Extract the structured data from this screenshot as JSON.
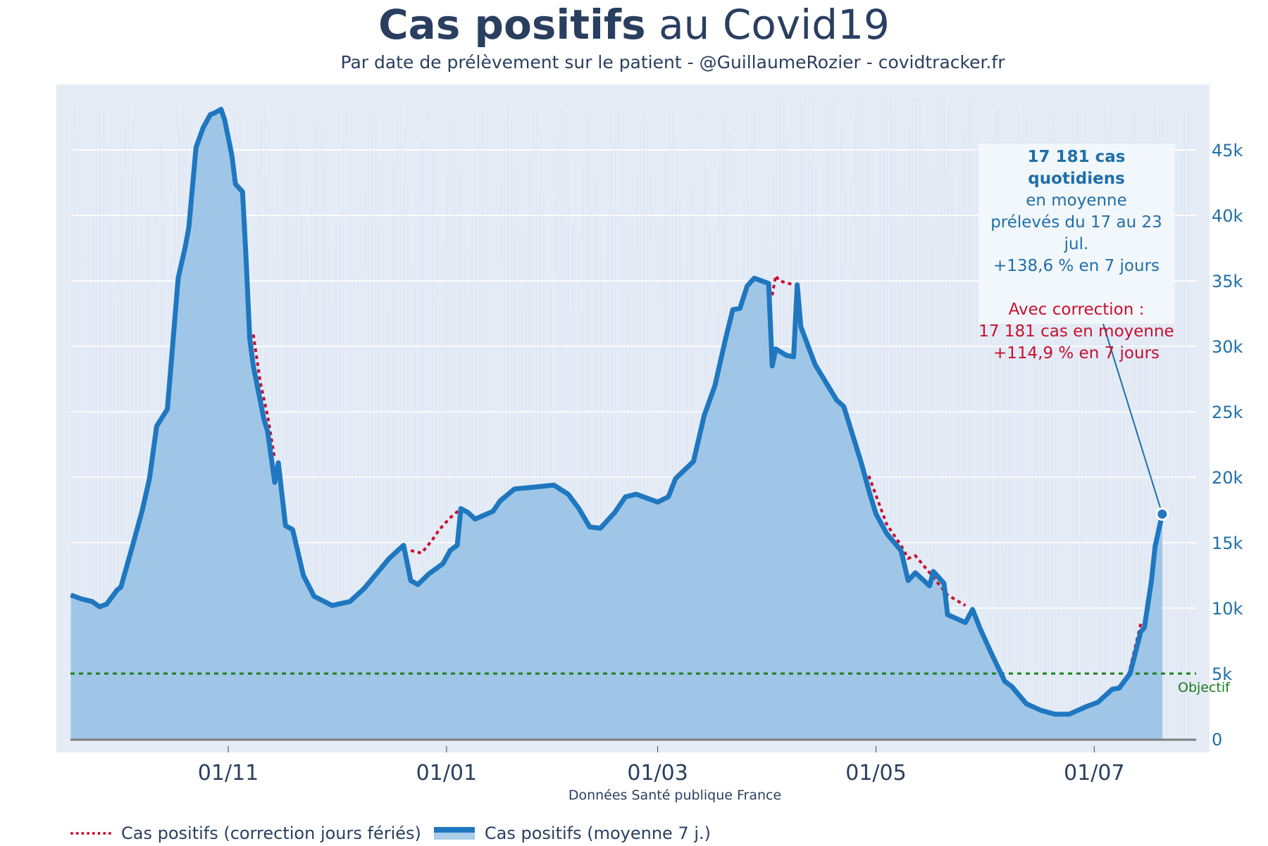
{
  "header": {
    "title_bold": "Cas positifs",
    "title_rest": " au Covid19",
    "subtitle": "Par date de prélèvement sur le patient - @GuillaumeRozier - covidtracker.fr"
  },
  "annotation": {
    "line1": "17 181 cas quotidiens",
    "line2": "en moyenne",
    "line3": "prélevés du 17 au 23 jul.",
    "line4": "+138,6 % en 7 jours",
    "line5": "Avec correction :",
    "line6": "17 181 cas en moyenne",
    "line7": "+114,9 % en 7 jours"
  },
  "legend": {
    "correction": "Cas positifs (correction jours fériés)",
    "average": "Cas positifs (moyenne 7 j.)"
  },
  "colors": {
    "line": "#1f77c0",
    "fill": "#9fc6e6",
    "correction": "#c8102e",
    "objective": "#1a7f1a",
    "plot_bg": "#e5ecf6"
  },
  "chart_data": {
    "type": "area",
    "title": "Cas positifs au Covid19",
    "subtitle": "Par date de prélèvement sur le patient - @GuillaumeRozier - covidtracker.fr",
    "xlabel": "Données Santé publique France",
    "ylabel": "",
    "x_ticks": [
      {
        "date": "2020-11-01",
        "label": "01/11"
      },
      {
        "date": "2021-01-01",
        "label": "01/01"
      },
      {
        "date": "2021-03-01",
        "label": "01/03"
      },
      {
        "date": "2021-05-01",
        "label": "01/05"
      },
      {
        "date": "2021-07-01",
        "label": "01/07"
      }
    ],
    "xlim": [
      "2020-09-18",
      "2021-08-07"
    ],
    "ylim": [
      0,
      49000
    ],
    "y_ticks": [
      0,
      5000,
      10000,
      15000,
      20000,
      25000,
      30000,
      35000,
      40000,
      45000
    ],
    "y_tick_labels": [
      "0",
      "5k",
      "10k",
      "15k",
      "20k",
      "25k",
      "30k",
      "35k",
      "40k",
      "45k"
    ],
    "y_axis_side": "right",
    "grid": true,
    "legend_position": "bottom-left",
    "objective": {
      "value": 5000,
      "label": "Objectif"
    },
    "last_point": {
      "date": "2021-07-20",
      "value": 17181
    },
    "series": [
      {
        "name": "Cas positifs (moyenne 7 j.)",
        "style": "solid-line-with-fill",
        "points": [
          [
            "2020-09-18",
            11000
          ],
          [
            "2020-09-21",
            10700
          ],
          [
            "2020-09-24",
            10500
          ],
          [
            "2020-09-26",
            10100
          ],
          [
            "2020-09-28",
            10300
          ],
          [
            "2020-10-01",
            11400
          ],
          [
            "2020-10-02",
            11600
          ],
          [
            "2020-10-05",
            14500
          ],
          [
            "2020-10-08",
            17500
          ],
          [
            "2020-10-10",
            19900
          ],
          [
            "2020-10-12",
            23900
          ],
          [
            "2020-10-15",
            25200
          ],
          [
            "2020-10-16",
            28500
          ],
          [
            "2020-10-18",
            35200
          ],
          [
            "2020-10-20",
            37600
          ],
          [
            "2020-10-21",
            39100
          ],
          [
            "2020-10-23",
            45200
          ],
          [
            "2020-10-25",
            46700
          ],
          [
            "2020-10-27",
            47700
          ],
          [
            "2020-10-28",
            47800
          ],
          [
            "2020-10-30",
            48100
          ],
          [
            "2020-10-31",
            47300
          ],
          [
            "2020-11-02",
            44600
          ],
          [
            "2020-11-03",
            42400
          ],
          [
            "2020-11-05",
            41800
          ],
          [
            "2020-11-06",
            36600
          ],
          [
            "2020-11-07",
            30600
          ],
          [
            "2020-11-08",
            28500
          ],
          [
            "2020-11-11",
            24400
          ],
          [
            "2020-11-12",
            23500
          ],
          [
            "2020-11-14",
            19600
          ],
          [
            "2020-11-15",
            21100
          ],
          [
            "2020-11-17",
            16300
          ],
          [
            "2020-11-19",
            16000
          ],
          [
            "2020-11-22",
            12500
          ],
          [
            "2020-11-25",
            10900
          ],
          [
            "2020-11-30",
            10200
          ],
          [
            "2020-12-05",
            10500
          ],
          [
            "2020-12-09",
            11500
          ],
          [
            "2020-12-16",
            13800
          ],
          [
            "2020-12-20",
            14800
          ],
          [
            "2020-12-22",
            12100
          ],
          [
            "2020-12-24",
            11800
          ],
          [
            "2020-12-27",
            12600
          ],
          [
            "2020-12-31",
            13400
          ],
          [
            "2021-01-02",
            14400
          ],
          [
            "2021-01-04",
            14800
          ],
          [
            "2021-01-05",
            17600
          ],
          [
            "2021-01-07",
            17300
          ],
          [
            "2021-01-09",
            16800
          ],
          [
            "2021-01-14",
            17400
          ],
          [
            "2021-01-16",
            18200
          ],
          [
            "2021-01-20",
            19100
          ],
          [
            "2021-01-24",
            19200
          ],
          [
            "2021-01-31",
            19400
          ],
          [
            "2021-02-04",
            18700
          ],
          [
            "2021-02-07",
            17600
          ],
          [
            "2021-02-10",
            16200
          ],
          [
            "2021-02-13",
            16100
          ],
          [
            "2021-02-17",
            17300
          ],
          [
            "2021-02-20",
            18500
          ],
          [
            "2021-02-23",
            18700
          ],
          [
            "2021-03-01",
            18100
          ],
          [
            "2021-03-04",
            18500
          ],
          [
            "2021-03-06",
            19900
          ],
          [
            "2021-03-11",
            21200
          ],
          [
            "2021-03-14",
            24700
          ],
          [
            "2021-03-17",
            27000
          ],
          [
            "2021-03-20",
            30600
          ],
          [
            "2021-03-22",
            32800
          ],
          [
            "2021-03-24",
            32900
          ],
          [
            "2021-03-26",
            34600
          ],
          [
            "2021-03-28",
            35200
          ],
          [
            "2021-04-01",
            34800
          ],
          [
            "2021-04-02",
            28500
          ],
          [
            "2021-04-03",
            29800
          ],
          [
            "2021-04-06",
            29300
          ],
          [
            "2021-04-08",
            29200
          ],
          [
            "2021-04-09",
            34700
          ],
          [
            "2021-04-10",
            31500
          ],
          [
            "2021-04-14",
            28600
          ],
          [
            "2021-04-20",
            25900
          ],
          [
            "2021-04-22",
            25400
          ],
          [
            "2021-04-27",
            21000
          ],
          [
            "2021-04-29",
            19000
          ],
          [
            "2021-05-01",
            17200
          ],
          [
            "2021-05-04",
            15700
          ],
          [
            "2021-05-08",
            14400
          ],
          [
            "2021-05-10",
            12100
          ],
          [
            "2021-05-12",
            12700
          ],
          [
            "2021-05-16",
            11700
          ],
          [
            "2021-05-17",
            12800
          ],
          [
            "2021-05-20",
            11900
          ],
          [
            "2021-05-21",
            9500
          ],
          [
            "2021-05-26",
            8900
          ],
          [
            "2021-05-28",
            9900
          ],
          [
            "2021-05-30",
            8500
          ],
          [
            "2021-06-02",
            6700
          ],
          [
            "2021-06-06",
            4400
          ],
          [
            "2021-06-08",
            4000
          ],
          [
            "2021-06-12",
            2700
          ],
          [
            "2021-06-16",
            2200
          ],
          [
            "2021-06-20",
            1900
          ],
          [
            "2021-06-24",
            1900
          ],
          [
            "2021-06-29",
            2500
          ],
          [
            "2021-07-02",
            2800
          ],
          [
            "2021-07-06",
            3800
          ],
          [
            "2021-07-08",
            3900
          ],
          [
            "2021-07-11",
            5000
          ],
          [
            "2021-07-14",
            8200
          ],
          [
            "2021-07-15",
            8500
          ],
          [
            "2021-07-17",
            12100
          ],
          [
            "2021-07-18",
            14700
          ],
          [
            "2021-07-20",
            17181
          ]
        ]
      },
      {
        "name": "Cas positifs (correction jours fériés)",
        "style": "dotted-line",
        "segments": [
          [
            [
              "2020-11-08",
              30900
            ],
            [
              "2020-11-10",
              27200
            ],
            [
              "2020-11-12",
              24700
            ],
            [
              "2020-11-14",
              21400
            ]
          ],
          [
            [
              "2020-12-22",
              14400
            ],
            [
              "2020-12-25",
              14200
            ],
            [
              "2020-12-28",
              15200
            ],
            [
              "2020-12-30",
              16000
            ],
            [
              "2021-01-02",
              16900
            ],
            [
              "2021-01-05",
              17600
            ]
          ],
          [
            [
              "2021-04-02",
              33900
            ],
            [
              "2021-04-03",
              35400
            ],
            [
              "2021-04-04",
              35000
            ],
            [
              "2021-04-08",
              34700
            ]
          ],
          [
            [
              "2021-04-29",
              20100
            ],
            [
              "2021-05-04",
              16400
            ],
            [
              "2021-05-08",
              14800
            ],
            [
              "2021-05-10",
              13800
            ],
            [
              "2021-05-12",
              14000
            ],
            [
              "2021-05-16",
              12700
            ],
            [
              "2021-05-21",
              11000
            ],
            [
              "2021-05-26",
              10200
            ]
          ],
          [
            [
              "2021-07-11",
              5400
            ],
            [
              "2021-07-14",
              8800
            ]
          ]
        ]
      }
    ]
  }
}
